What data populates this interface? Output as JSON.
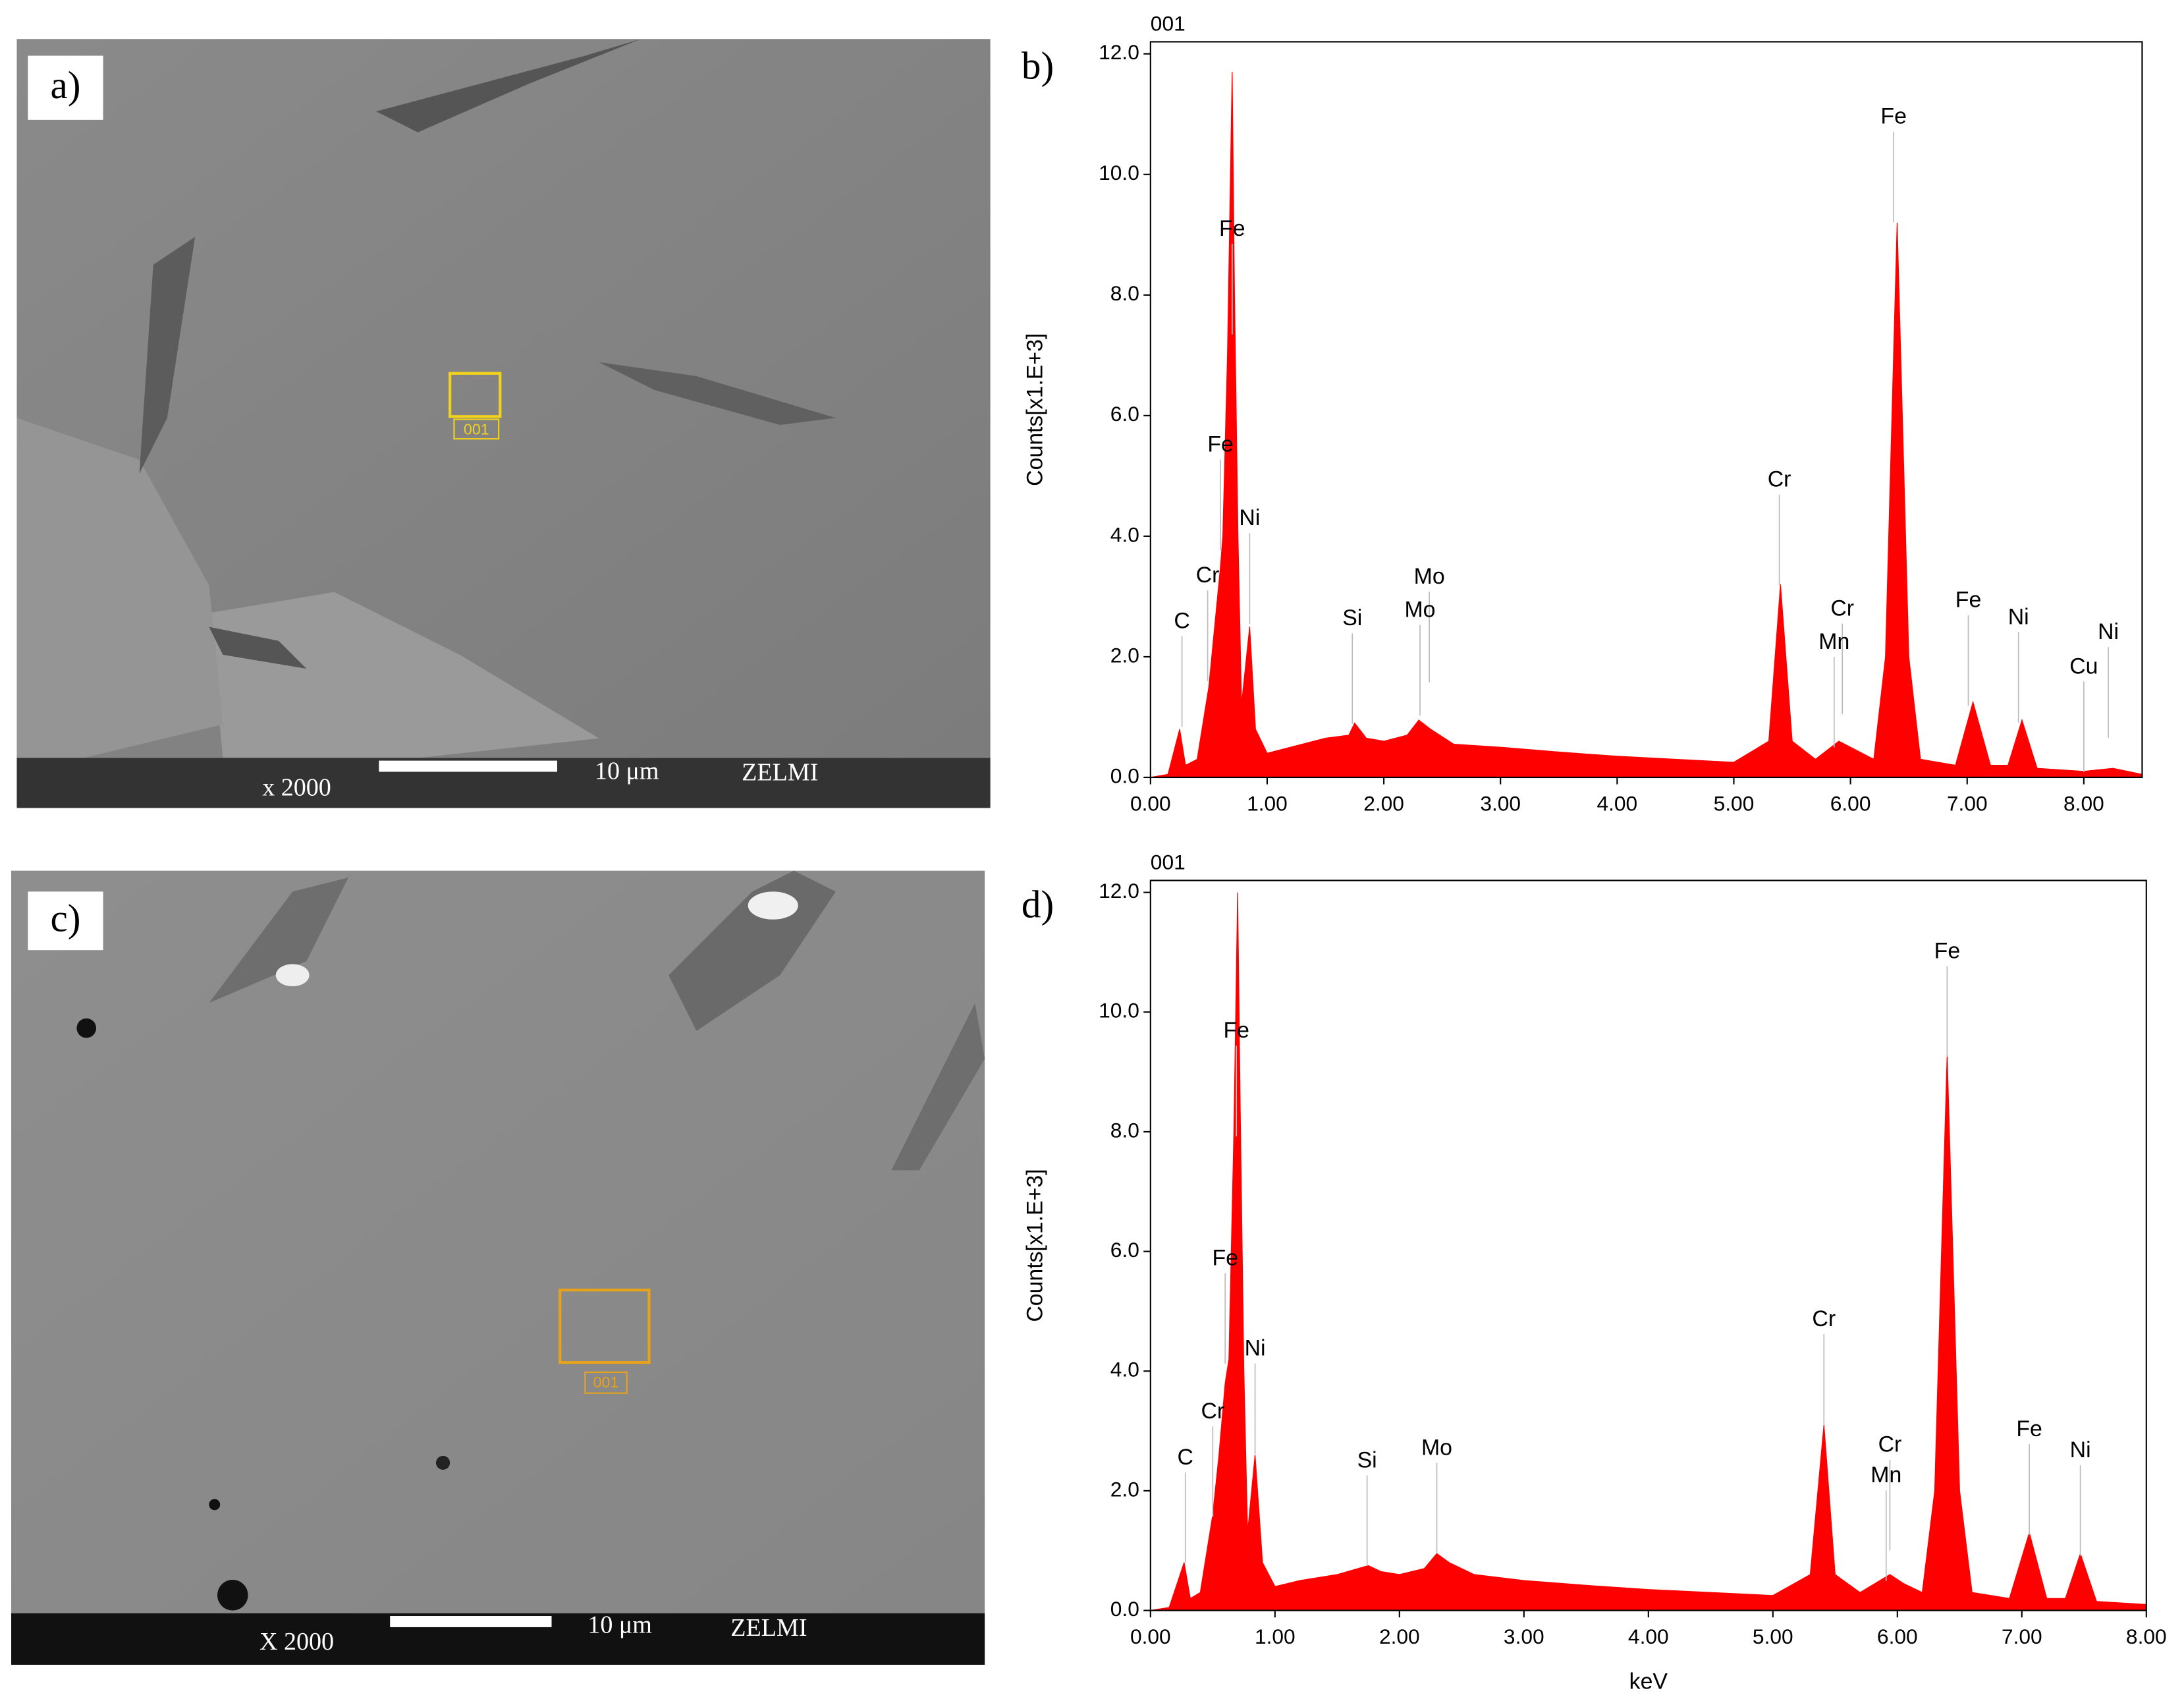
{
  "images": [
    {
      "label": "a)",
      "magnification": "x 2000",
      "scale": "10 μm",
      "lab": "ZELMI",
      "region": "001"
    },
    {
      "label": "c)",
      "magnification": "X 2000",
      "scale": "10 μm",
      "lab": "ZELMI",
      "region": "001"
    }
  ],
  "chart_data": [
    {
      "type": "area",
      "label": "b)",
      "title": "001",
      "y_label": "Counts[x1.E+3]",
      "color": "#ff0000",
      "xlim": [
        0,
        8.5
      ],
      "ylim": [
        0,
        12.2
      ],
      "xticks": [
        {
          "value": 0,
          "label": "0.00"
        },
        {
          "value": 1,
          "label": "1.00"
        },
        {
          "value": 2,
          "label": "2.00"
        },
        {
          "value": 3,
          "label": "3.00"
        },
        {
          "value": 4,
          "label": "4.00"
        },
        {
          "value": 5,
          "label": "5.00"
        },
        {
          "value": 6,
          "label": "6.00"
        },
        {
          "value": 7,
          "label": "7.00"
        },
        {
          "value": 8,
          "label": "8.00"
        }
      ],
      "yticks": [
        {
          "value": 0,
          "label": "0.0"
        },
        {
          "value": 2,
          "label": "2.0"
        },
        {
          "value": 4,
          "label": "4.0"
        },
        {
          "value": 6,
          "label": "6.0"
        },
        {
          "value": 8,
          "label": "8.0"
        },
        {
          "value": 10,
          "label": "10.0"
        },
        {
          "value": 12,
          "label": "12.0"
        }
      ],
      "x": [
        0,
        0.15,
        0.25,
        0.3,
        0.4,
        0.5,
        0.55,
        0.6,
        0.62,
        0.66,
        0.7,
        0.72,
        0.75,
        0.78,
        0.85,
        0.9,
        1.0,
        1.2,
        1.5,
        1.7,
        1.75,
        1.85,
        2.0,
        2.2,
        2.3,
        2.4,
        2.6,
        3.0,
        3.5,
        4.0,
        4.5,
        5.0,
        5.3,
        5.4,
        5.5,
        5.7,
        5.9,
        6.0,
        6.2,
        6.3,
        6.4,
        6.5,
        6.6,
        6.9,
        7.05,
        7.2,
        7.35,
        7.47,
        7.6,
        8.0,
        8.25,
        8.5
      ],
      "values": [
        0,
        0.05,
        0.8,
        0.2,
        0.3,
        1.5,
        2.5,
        3.5,
        4.0,
        7,
        11.7,
        8,
        4,
        1.2,
        2.5,
        0.8,
        0.4,
        0.5,
        0.65,
        0.7,
        0.9,
        0.65,
        0.6,
        0.7,
        0.95,
        0.8,
        0.55,
        0.5,
        0.42,
        0.35,
        0.3,
        0.25,
        0.6,
        3.2,
        0.6,
        0.3,
        0.6,
        0.5,
        0.3,
        2,
        9.2,
        2,
        0.3,
        0.2,
        1.25,
        0.2,
        0.2,
        0.95,
        0.15,
        0.1,
        0.15,
        0.05
      ],
      "annotations": [
        {
          "text": "C",
          "x": 0.27,
          "y": 2.57
        },
        {
          "text": "Cr",
          "x": 0.49,
          "y": 3.33
        },
        {
          "text": "Fe",
          "x": 0.6,
          "y": 5.5
        },
        {
          "text": "Ni",
          "x": 0.85,
          "y": 4.28
        },
        {
          "text": "Fe",
          "x": 0.7,
          "y": 9.08
        },
        {
          "text": "Si",
          "x": 1.73,
          "y": 2.62
        },
        {
          "text": "Mo",
          "x": 2.39,
          "y": 3.31
        },
        {
          "text": "Mo",
          "x": 2.31,
          "y": 2.76
        },
        {
          "text": "Cr",
          "x": 5.39,
          "y": 4.92
        },
        {
          "text": "Cr",
          "x": 5.93,
          "y": 2.78
        },
        {
          "text": "Mn",
          "x": 5.86,
          "y": 2.23
        },
        {
          "text": "Fe",
          "x": 6.37,
          "y": 10.94
        },
        {
          "text": "Fe",
          "x": 7.01,
          "y": 2.92
        },
        {
          "text": "Ni",
          "x": 7.44,
          "y": 2.64
        },
        {
          "text": "Cu",
          "x": 8.0,
          "y": 1.82
        },
        {
          "text": "Ni",
          "x": 8.21,
          "y": 2.39
        }
      ]
    },
    {
      "type": "area",
      "label": "d)",
      "title": "001",
      "y_label": "Counts[x1.E+3]",
      "x_label": "keV",
      "color": "#ff0000",
      "xlim": [
        0,
        8
      ],
      "ylim": [
        0,
        12.2
      ],
      "xticks": [
        {
          "value": 0,
          "label": "0.00"
        },
        {
          "value": 1,
          "label": "1.00"
        },
        {
          "value": 2,
          "label": "2.00"
        },
        {
          "value": 3,
          "label": "3.00"
        },
        {
          "value": 4,
          "label": "4.00"
        },
        {
          "value": 5,
          "label": "5.00"
        },
        {
          "value": 6,
          "label": "6.00"
        },
        {
          "value": 7,
          "label": "7.00"
        },
        {
          "value": 8,
          "label": "8.00"
        }
      ],
      "yticks": [
        {
          "value": 0,
          "label": "0.0"
        },
        {
          "value": 2,
          "label": "2.0"
        },
        {
          "value": 4,
          "label": "4.0"
        },
        {
          "value": 6,
          "label": "6.0"
        },
        {
          "value": 8,
          "label": "8.0"
        },
        {
          "value": 10,
          "label": "10.0"
        },
        {
          "value": 12,
          "label": "12.0"
        }
      ],
      "x": [
        0,
        0.15,
        0.27,
        0.32,
        0.4,
        0.5,
        0.55,
        0.6,
        0.63,
        0.67,
        0.7,
        0.72,
        0.75,
        0.78,
        0.84,
        0.9,
        1.0,
        1.2,
        1.5,
        1.75,
        1.85,
        2.0,
        2.2,
        2.3,
        2.4,
        2.6,
        3.0,
        3.5,
        4.0,
        4.5,
        5.0,
        5.3,
        5.41,
        5.5,
        5.7,
        5.94,
        6.05,
        6.2,
        6.3,
        6.4,
        6.5,
        6.6,
        6.9,
        7.06,
        7.2,
        7.35,
        7.47,
        7.6,
        8.0
      ],
      "values": [
        0,
        0.05,
        0.8,
        0.2,
        0.3,
        1.6,
        2.6,
        3.8,
        4.2,
        8,
        12.0,
        8.5,
        4,
        1.3,
        2.6,
        0.8,
        0.4,
        0.5,
        0.6,
        0.75,
        0.65,
        0.6,
        0.7,
        0.95,
        0.8,
        0.6,
        0.5,
        0.42,
        0.35,
        0.3,
        0.25,
        0.6,
        3.1,
        0.6,
        0.3,
        0.6,
        0.45,
        0.3,
        2,
        9.3,
        2,
        0.3,
        0.2,
        1.3,
        0.2,
        0.2,
        0.95,
        0.15,
        0.1
      ],
      "annotations": [
        {
          "text": "C",
          "x": 0.28,
          "y": 2.54
        },
        {
          "text": "Cr",
          "x": 0.5,
          "y": 3.31
        },
        {
          "text": "Fe",
          "x": 0.6,
          "y": 5.87
        },
        {
          "text": "Ni",
          "x": 0.84,
          "y": 4.36
        },
        {
          "text": "Fe",
          "x": 0.69,
          "y": 9.67
        },
        {
          "text": "Si",
          "x": 1.74,
          "y": 2.49
        },
        {
          "text": "Mo",
          "x": 2.3,
          "y": 2.7
        },
        {
          "text": "Cr",
          "x": 5.41,
          "y": 4.85
        },
        {
          "text": "Cr",
          "x": 5.94,
          "y": 2.75
        },
        {
          "text": "Mn",
          "x": 5.91,
          "y": 2.24
        },
        {
          "text": "Fe",
          "x": 6.4,
          "y": 11.0
        },
        {
          "text": "Fe",
          "x": 7.06,
          "y": 3.01
        },
        {
          "text": "Ni",
          "x": 7.47,
          "y": 2.66
        }
      ]
    }
  ]
}
